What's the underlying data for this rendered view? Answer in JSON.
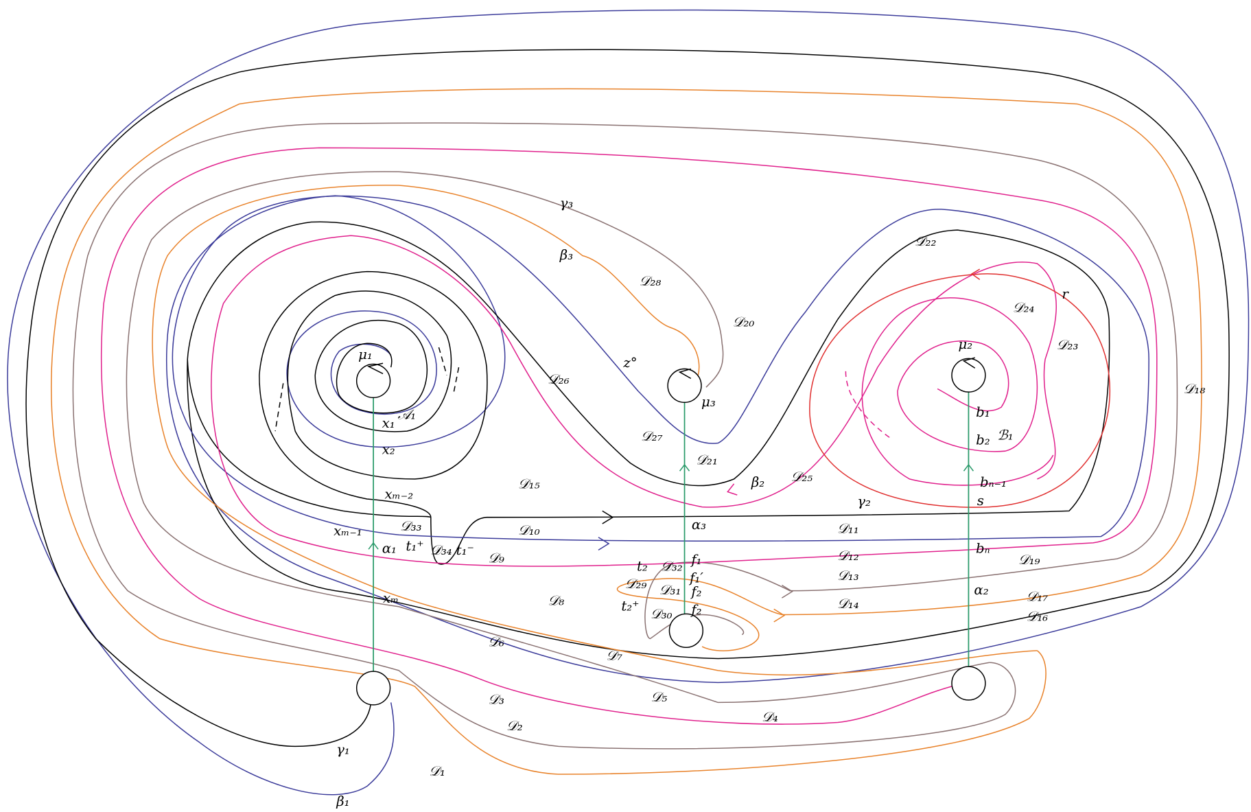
{
  "regions": [
    "𝒟₁",
    "𝒟₂",
    "𝒟₃",
    "𝒟₄",
    "𝒟₅",
    "𝒟₆",
    "𝒟₇",
    "𝒟₈",
    "𝒟₉",
    "𝒟₁₀",
    "𝒟₁₁",
    "𝒟₁₂",
    "𝒟₁₃",
    "𝒟₁₄",
    "𝒟₁₅",
    "𝒟₁₆",
    "𝒟₁₇",
    "𝒟₁₈",
    "𝒟₁₉",
    "𝒟₂₀",
    "𝒟₂₁",
    "𝒟₂₂",
    "𝒟₂₃",
    "𝒟₂₄",
    "𝒟₂₅",
    "𝒟₂₆",
    "𝒟₂₇",
    "𝒟₂₈",
    "𝒟₂₉",
    "𝒟₃₀",
    "𝒟₃₁",
    "𝒟₃₂",
    "𝒟₃₃",
    "𝒟₃₄"
  ],
  "curve_labels": [
    "α₁",
    "α₂",
    "α₃",
    "β₁",
    "β₂",
    "β₃",
    "γ₁",
    "γ₂",
    "γ₃",
    "r",
    "s",
    "z°"
  ],
  "point_labels": [
    "μ₁",
    "μ₂",
    "μ₃",
    "x₁",
    "𝒜₁",
    "x₂",
    "xₘ₋₂",
    "xₘ₋₁",
    "xₘ",
    "t₁⁺",
    "t₁⁻",
    "t₂",
    "t₂⁺",
    "f₁",
    "f₁′",
    "f₂",
    "f₂",
    "b₁",
    "b₂",
    "ℬ₁",
    "bₙ₋₁",
    "bₙ"
  ]
}
